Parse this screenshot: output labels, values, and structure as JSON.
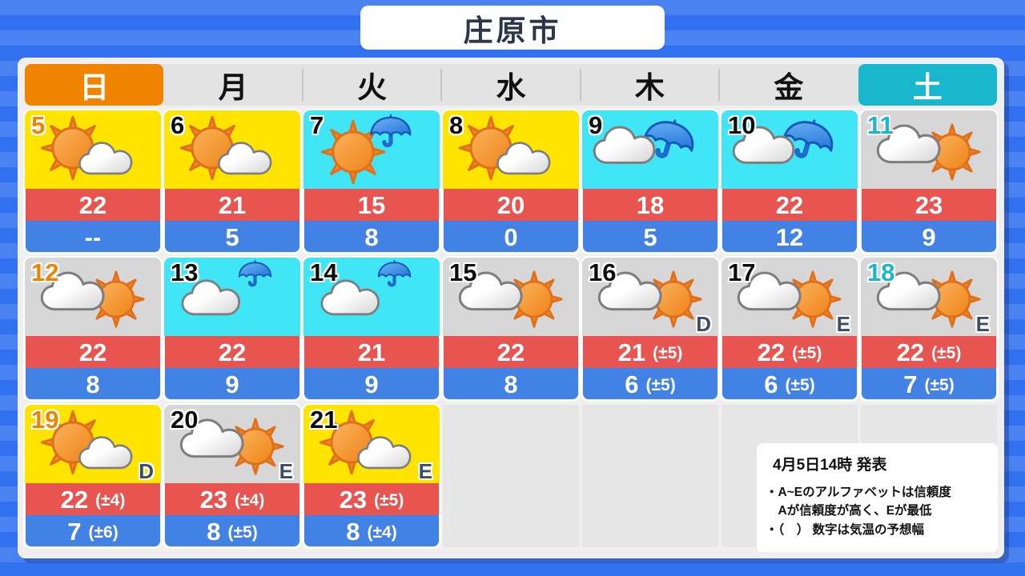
{
  "title": "庄原市",
  "weekdays": [
    {
      "label": "日",
      "type": "sunday"
    },
    {
      "label": "月",
      "type": "weekday"
    },
    {
      "label": "火",
      "type": "weekday"
    },
    {
      "label": "水",
      "type": "weekday"
    },
    {
      "label": "木",
      "type": "weekday"
    },
    {
      "label": "金",
      "type": "weekday"
    },
    {
      "label": "土",
      "type": "saturday"
    }
  ],
  "cells": [
    {
      "date": "5",
      "day_type": "sunday",
      "sky": "sunny",
      "icon": "sun-cloud",
      "high": "22",
      "low": "--"
    },
    {
      "date": "6",
      "day_type": "weekday",
      "sky": "sunny",
      "icon": "sun-cloud",
      "high": "21",
      "low": "5"
    },
    {
      "date": "7",
      "day_type": "weekday",
      "sky": "rain",
      "icon": "sun-umbrella",
      "high": "15",
      "low": "8"
    },
    {
      "date": "8",
      "day_type": "weekday",
      "sky": "sunny",
      "icon": "sun-cloud",
      "high": "20",
      "low": "0"
    },
    {
      "date": "9",
      "day_type": "weekday",
      "sky": "rain",
      "icon": "cloud-umbrella",
      "high": "18",
      "low": "5"
    },
    {
      "date": "10",
      "day_type": "weekday",
      "sky": "rain",
      "icon": "cloud-umbrella",
      "high": "22",
      "low": "12"
    },
    {
      "date": "11",
      "day_type": "saturday",
      "sky": "cloudy",
      "icon": "cloud-sun",
      "high": "23",
      "low": "9"
    },
    {
      "date": "12",
      "day_type": "sunday",
      "sky": "cloudy",
      "icon": "cloud-sun",
      "high": "22",
      "low": "8"
    },
    {
      "date": "13",
      "day_type": "weekday",
      "sky": "rain",
      "icon": "cloud-umbrella-top",
      "high": "22",
      "low": "9"
    },
    {
      "date": "14",
      "day_type": "weekday",
      "sky": "rain",
      "icon": "cloud-umbrella-top",
      "high": "21",
      "low": "9"
    },
    {
      "date": "15",
      "day_type": "weekday",
      "sky": "cloudy",
      "icon": "cloud-sun",
      "high": "22",
      "low": "8"
    },
    {
      "date": "16",
      "day_type": "weekday",
      "sky": "cloudy",
      "icon": "cloud-sun",
      "confidence": "D",
      "high": "21",
      "high_range": "(±5)",
      "low": "6",
      "low_range": "(±5)"
    },
    {
      "date": "17",
      "day_type": "weekday",
      "sky": "cloudy",
      "icon": "cloud-sun",
      "confidence": "E",
      "high": "22",
      "high_range": "(±5)",
      "low": "6",
      "low_range": "(±5)"
    },
    {
      "date": "18",
      "day_type": "saturday",
      "sky": "cloudy",
      "icon": "cloud-sun",
      "confidence": "E",
      "high": "22",
      "high_range": "(±5)",
      "low": "7",
      "low_range": "(±5)"
    },
    {
      "date": "19",
      "day_type": "sunday",
      "sky": "sunny",
      "icon": "sun-cloud",
      "confidence": "D",
      "high": "22",
      "high_range": "(±4)",
      "low": "7",
      "low_range": "(±6)"
    },
    {
      "date": "20",
      "day_type": "weekday",
      "sky": "cloudy",
      "icon": "cloud-sun",
      "confidence": "E",
      "high": "23",
      "high_range": "(±4)",
      "low": "8",
      "low_range": "(±5)"
    },
    {
      "date": "21",
      "day_type": "weekday",
      "sky": "sunny",
      "icon": "sun-cloud",
      "confidence": "E",
      "high": "23",
      "high_range": "(±5)",
      "low": "8",
      "low_range": "(±4)"
    }
  ],
  "empty_cell_count": 4,
  "notice": {
    "issued": "4月5日14時 発表",
    "line1": "・A~Eのアルファベットは信頼度",
    "line2": "　Aが信頼度が高く、Eが最低",
    "line3": "・（　） 数字は気温の予想幅"
  },
  "colors": {
    "sunday_accent": "#F08300",
    "saturday_accent": "#18B7CE",
    "sky_sunny": "#FFE400",
    "sky_rain": "#41E6F6",
    "sky_cloudy": "#D7D7D7",
    "high_band": "#E85450",
    "low_band": "#4182E4",
    "weekday_text": "#0D0D0D",
    "background": "#3170EE"
  }
}
